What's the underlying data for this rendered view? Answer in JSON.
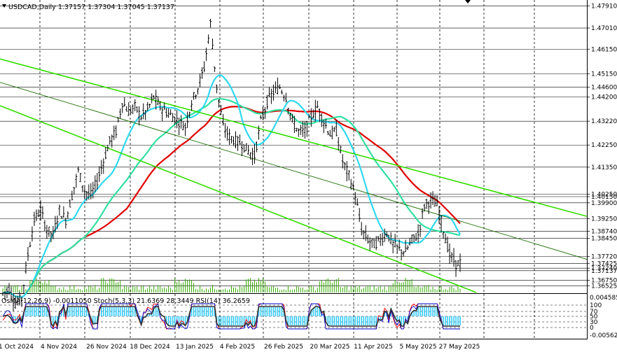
{
  "header": {
    "symbol_line": "USDCAD,Daily  1.37157 1.37304 1.37045 1.37137",
    "indicator_line": "OsMA(12,26,9) -0.0011050  Stoch(5,3,3) 21.6369 28.3449  RSI(14) 36.2659"
  },
  "colors": {
    "background": "#ffffff",
    "candles": "#000000",
    "ma_red": "#e00000",
    "ma_cyan": "#30d8f0",
    "ma_green": "#30e0a0",
    "channel_lines": "#33dd00",
    "volume": "#33aa00",
    "osma": "#33ccff",
    "stoch_main": "#0000cc",
    "stoch_signal": "#ff0000",
    "rsi": "#333333"
  },
  "chart_data": {
    "type": "candlestick",
    "symbol": "USDCAD",
    "timeframe": "Daily",
    "last_bar": {
      "open": 1.37157,
      "high": 1.37304,
      "low": 1.37045,
      "close": 1.37137
    },
    "x_tick_labels": [
      "1 Oct 2024",
      "4 Nov 2024",
      "26 Nov 2024",
      "18 Dec 2024",
      "13 Jan 2025",
      "4 Feb 2025",
      "26 Feb 2025",
      "20 Mar 2025",
      "11 Apr 2025",
      "5 May 2025",
      "27 May 2025"
    ],
    "y_tick_labels": [
      "1.47910",
      "1.47010",
      "1.46150",
      "1.45150",
      "1.44600",
      "1.44200",
      "1.43220",
      "1.42250",
      "1.41350",
      "1.40250",
      "1.40150",
      "1.39900",
      "1.39250",
      "1.38740",
      "1.38450",
      "1.37720",
      "1.37425",
      "1.37240",
      "1.37137",
      "1.36750",
      "1.36525"
    ],
    "price_range": [
      1.3625,
      1.4815
    ],
    "price_path": [
      1.362,
      1.364,
      1.358,
      1.36,
      1.378,
      1.392,
      1.396,
      1.388,
      1.386,
      1.396,
      1.392,
      1.402,
      1.412,
      1.404,
      1.402,
      1.408,
      1.416,
      1.424,
      1.428,
      1.44,
      1.436,
      1.438,
      1.434,
      1.437,
      1.442,
      1.438,
      1.436,
      1.434,
      1.432,
      1.43,
      1.44,
      1.446,
      1.454,
      1.472,
      1.446,
      1.43,
      1.426,
      1.424,
      1.423,
      1.42,
      1.418,
      1.432,
      1.44,
      1.444,
      1.446,
      1.442,
      1.432,
      1.428,
      1.428,
      1.434,
      1.438,
      1.432,
      1.427,
      1.428,
      1.416,
      1.41,
      1.402,
      1.388,
      1.384,
      1.382,
      1.384,
      1.387,
      1.382,
      1.38,
      1.379,
      1.384,
      1.386,
      1.398,
      1.4,
      1.398,
      1.388,
      1.378,
      1.374,
      1.375
    ],
    "indicators": [
      {
        "name": "OsMA",
        "params": "12,26,9",
        "value": -0.001105
      },
      {
        "name": "Stoch",
        "params": "5,3,3",
        "values": [
          21.6369,
          28.3449
        ]
      },
      {
        "name": "RSI",
        "params": "14",
        "value": 36.2659
      }
    ],
    "osc_tick_labels": [
      "0.004585",
      "100",
      "70",
      "50",
      "30",
      "0",
      "-0.00562"
    ],
    "grid": true
  }
}
